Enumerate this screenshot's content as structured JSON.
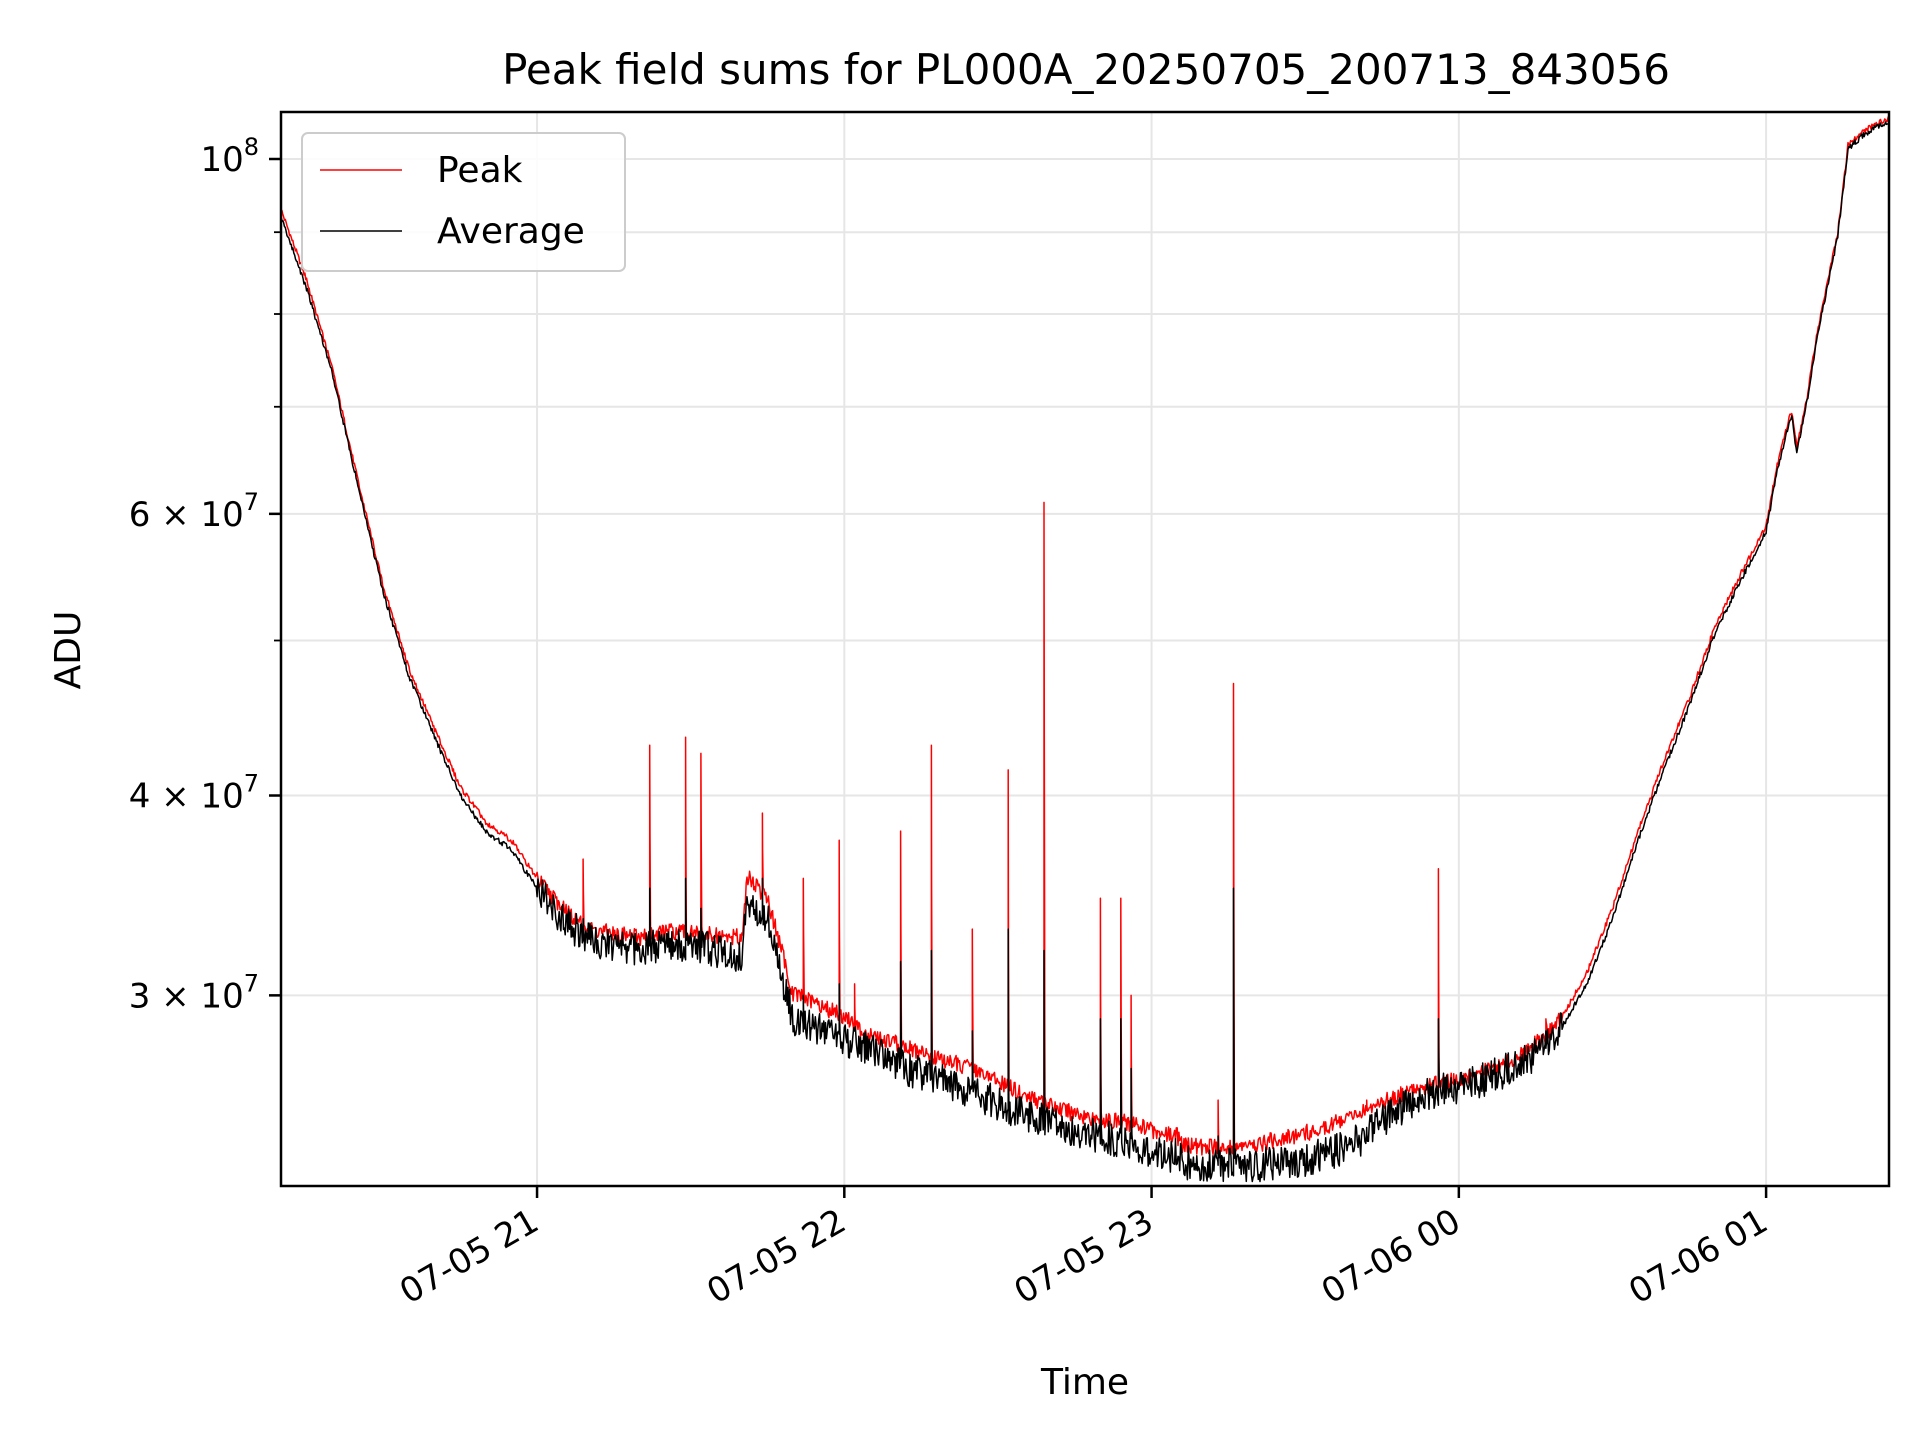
{
  "chart_data": {
    "type": "line",
    "title": "Peak field sums for PL000A_20250705_200713_843056",
    "xlabel": "Time",
    "ylabel": "ADU",
    "yscale": "log",
    "grid": true,
    "legend_position": "top-left",
    "xlim": [
      "2025-07-05 20:10",
      "2025-07-06 01:24"
    ],
    "ylim": [
      22800000,
      107000000
    ],
    "x_ticks": [
      {
        "value": "2025-07-05 21:00",
        "label": "07-05 21"
      },
      {
        "value": "2025-07-05 22:00",
        "label": "07-05 22"
      },
      {
        "value": "2025-07-05 23:00",
        "label": "07-05 23"
      },
      {
        "value": "2025-07-06 00:00",
        "label": "07-06 00"
      },
      {
        "value": "2025-07-06 01:00",
        "label": "07-06 01"
      }
    ],
    "y_ticks": [
      {
        "value": 100000000,
        "base": "10",
        "exp": "8"
      },
      {
        "value": 60000000,
        "base": "6 × 10",
        "exp": "7"
      },
      {
        "value": 40000000,
        "base": "4 × 10",
        "exp": "7"
      },
      {
        "value": 30000000,
        "base": "3 × 10",
        "exp": "7"
      }
    ],
    "y_minor_ticks": [
      50000000,
      70000000,
      80000000,
      90000000
    ],
    "series": [
      {
        "name": "Peak",
        "color": "#ff0000",
        "x": [
          "2025-07-05 20:10",
          "2025-07-05 20:15",
          "2025-07-05 20:20",
          "2025-07-05 20:25",
          "2025-07-05 20:30",
          "2025-07-05 20:35",
          "2025-07-05 20:40",
          "2025-07-05 20:45",
          "2025-07-05 20:50",
          "2025-07-05 20:55",
          "2025-07-05 21:00",
          "2025-07-05 21:05",
          "2025-07-05 21:10",
          "2025-07-05 21:15",
          "2025-07-05 21:20",
          "2025-07-05 21:25",
          "2025-07-05 21:30",
          "2025-07-05 21:35",
          "2025-07-05 21:40",
          "2025-07-05 21:41",
          "2025-07-05 21:45",
          "2025-07-05 21:50",
          "2025-07-05 21:55",
          "2025-07-05 21:57",
          "2025-07-05 22:00",
          "2025-07-05 22:05",
          "2025-07-05 22:10",
          "2025-07-05 22:15",
          "2025-07-05 22:20",
          "2025-07-05 22:25",
          "2025-07-05 22:30",
          "2025-07-05 22:35",
          "2025-07-05 22:40",
          "2025-07-05 22:45",
          "2025-07-05 22:50",
          "2025-07-05 22:55",
          "2025-07-05 23:00",
          "2025-07-05 23:05",
          "2025-07-05 23:06",
          "2025-07-05 23:10",
          "2025-07-05 23:15",
          "2025-07-05 23:20",
          "2025-07-05 23:25",
          "2025-07-05 23:30",
          "2025-07-05 23:35",
          "2025-07-05 23:40",
          "2025-07-05 23:45",
          "2025-07-05 23:50",
          "2025-07-05 23:55",
          "2025-07-06 00:00",
          "2025-07-06 00:05",
          "2025-07-06 00:10",
          "2025-07-06 00:15",
          "2025-07-06 00:20",
          "2025-07-06 00:25",
          "2025-07-06 00:30",
          "2025-07-06 00:35",
          "2025-07-06 00:40",
          "2025-07-06 00:45",
          "2025-07-06 00:50",
          "2025-07-06 00:55",
          "2025-07-06 01:00",
          "2025-07-06 01:02",
          "2025-07-06 01:04",
          "2025-07-06 01:05",
          "2025-07-06 01:06",
          "2025-07-06 01:08",
          "2025-07-06 01:10",
          "2025-07-06 01:14",
          "2025-07-06 01:16",
          "2025-07-06 01:19",
          "2025-07-06 01:21",
          "2025-07-06 01:24"
        ],
        "y": [
          93000000,
          84000000,
          74000000,
          63000000,
          54000000,
          48000000,
          44000000,
          40500000,
          38500000,
          37500000,
          35500000,
          34000000,
          33000000,
          32800000,
          32600000,
          32900000,
          32800000,
          32700000,
          32600000,
          35600000,
          34500000,
          30100000,
          29600000,
          29400000,
          29100000,
          28300000,
          28000000,
          27600000,
          27300000,
          27000000,
          26500000,
          26000000,
          25600000,
          25300000,
          25100000,
          25000000,
          24700000,
          24500000,
          24200000,
          24100000,
          24100000,
          24200000,
          24400000,
          24600000,
          24900000,
          25200000,
          25700000,
          26100000,
          26400000,
          26600000,
          26900000,
          27300000,
          28000000,
          29000000,
          31000000,
          34000000,
          38000000,
          42000000,
          46000000,
          51000000,
          55000000,
          59000000,
          64000000,
          68000000,
          69500000,
          66000000,
          71000000,
          78000000,
          90000000,
          102000000,
          104000000,
          105000000,
          106000000
        ]
      },
      {
        "name": "Average",
        "color": "#000000",
        "x": [
          "2025-07-05 20:10",
          "2025-07-05 20:15",
          "2025-07-05 20:20",
          "2025-07-05 20:25",
          "2025-07-05 20:30",
          "2025-07-05 20:35",
          "2025-07-05 20:40",
          "2025-07-05 20:45",
          "2025-07-05 20:50",
          "2025-07-05 20:55",
          "2025-07-05 21:00",
          "2025-07-05 21:05",
          "2025-07-05 21:10",
          "2025-07-05 21:15",
          "2025-07-05 21:20",
          "2025-07-05 21:25",
          "2025-07-05 21:30",
          "2025-07-05 21:35",
          "2025-07-05 21:40",
          "2025-07-05 21:41",
          "2025-07-05 21:45",
          "2025-07-05 21:50",
          "2025-07-05 21:55",
          "2025-07-05 21:57",
          "2025-07-05 22:00",
          "2025-07-05 22:05",
          "2025-07-05 22:10",
          "2025-07-05 22:15",
          "2025-07-05 22:20",
          "2025-07-05 22:25",
          "2025-07-05 22:30",
          "2025-07-05 22:35",
          "2025-07-05 22:40",
          "2025-07-05 22:45",
          "2025-07-05 22:50",
          "2025-07-05 22:55",
          "2025-07-05 23:00",
          "2025-07-05 23:05",
          "2025-07-05 23:06",
          "2025-07-05 23:10",
          "2025-07-05 23:15",
          "2025-07-05 23:20",
          "2025-07-05 23:25",
          "2025-07-05 23:30",
          "2025-07-05 23:35",
          "2025-07-05 23:40",
          "2025-07-05 23:45",
          "2025-07-05 23:50",
          "2025-07-05 23:55",
          "2025-07-06 00:00",
          "2025-07-06 00:05",
          "2025-07-06 00:10",
          "2025-07-06 00:15",
          "2025-07-06 00:20",
          "2025-07-06 00:25",
          "2025-07-06 00:30",
          "2025-07-06 00:35",
          "2025-07-06 00:40",
          "2025-07-06 00:45",
          "2025-07-06 00:50",
          "2025-07-06 00:55",
          "2025-07-06 01:00",
          "2025-07-06 01:02",
          "2025-07-06 01:04",
          "2025-07-06 01:05",
          "2025-07-06 01:06",
          "2025-07-06 01:08",
          "2025-07-06 01:10",
          "2025-07-06 01:14",
          "2025-07-06 01:16",
          "2025-07-06 01:19",
          "2025-07-06 01:21",
          "2025-07-06 01:24"
        ],
        "y": [
          92000000,
          83000000,
          73500000,
          62500000,
          53500000,
          47500000,
          43500000,
          40000000,
          38000000,
          37000000,
          35000000,
          33500000,
          32500000,
          32300000,
          32100000,
          32300000,
          32200000,
          32000000,
          31600000,
          34500000,
          33500000,
          29000000,
          28600000,
          28400000,
          28200000,
          27700000,
          27200000,
          26800000,
          26500000,
          26100000,
          25700000,
          25300000,
          25000000,
          24700000,
          24500000,
          24300000,
          24000000,
          23800000,
          23600000,
          23500000,
          23500000,
          23500000,
          23600000,
          23700000,
          23900000,
          24300000,
          25000000,
          25700000,
          26100000,
          26300000,
          26600000,
          27000000,
          27600000,
          28600000,
          30500000,
          33500000,
          37500000,
          41500000,
          45500000,
          50500000,
          54500000,
          58500000,
          63500000,
          67500000,
          69000000,
          65500000,
          70500000,
          77500000,
          89500000,
          101500000,
          103500000,
          104500000,
          105500000
        ]
      }
    ],
    "spikes": [
      {
        "x": "2025-07-05 21:09",
        "peak": 36500000,
        "average": 33500000
      },
      {
        "x": "2025-07-05 21:22",
        "peak": 43000000,
        "average": 35000000
      },
      {
        "x": "2025-07-05 21:29",
        "peak": 43500000,
        "average": 35500000
      },
      {
        "x": "2025-07-05 21:32",
        "peak": 42500000,
        "average": 34000000
      },
      {
        "x": "2025-07-05 21:44",
        "peak": 39000000,
        "average": 35500000
      },
      {
        "x": "2025-07-05 21:52",
        "peak": 35500000,
        "average": 30000000
      },
      {
        "x": "2025-07-05 21:59",
        "peak": 37500000,
        "average": 30500000
      },
      {
        "x": "2025-07-05 22:02",
        "peak": 30500000,
        "average": 28500000
      },
      {
        "x": "2025-07-05 22:11",
        "peak": 38000000,
        "average": 31500000
      },
      {
        "x": "2025-07-05 22:17",
        "peak": 43000000,
        "average": 32000000
      },
      {
        "x": "2025-07-05 22:25",
        "peak": 33000000,
        "average": 28500000
      },
      {
        "x": "2025-07-05 22:32",
        "peak": 41500000,
        "average": 33000000
      },
      {
        "x": "2025-07-05 22:39",
        "peak": 61000000,
        "average": 32000000
      },
      {
        "x": "2025-07-05 22:50",
        "peak": 34500000,
        "average": 29000000
      },
      {
        "x": "2025-07-05 22:54",
        "peak": 34500000,
        "average": 29000000
      },
      {
        "x": "2025-07-05 22:56",
        "peak": 30000000,
        "average": 27000000
      },
      {
        "x": "2025-07-05 23:13",
        "peak": 25800000,
        "average": 24500000
      },
      {
        "x": "2025-07-05 23:16",
        "peak": 47000000,
        "average": 35000000
      },
      {
        "x": "2025-07-05 23:42",
        "peak": 25800000,
        "average": 24800000
      },
      {
        "x": "2025-07-05 23:56",
        "peak": 36000000,
        "average": 29000000
      },
      {
        "x": "2025-07-05 23:59",
        "peak": 26800000,
        "average": 25800000
      },
      {
        "x": "2025-07-06 00:17",
        "peak": 29000000,
        "average": 27800000
      }
    ]
  }
}
